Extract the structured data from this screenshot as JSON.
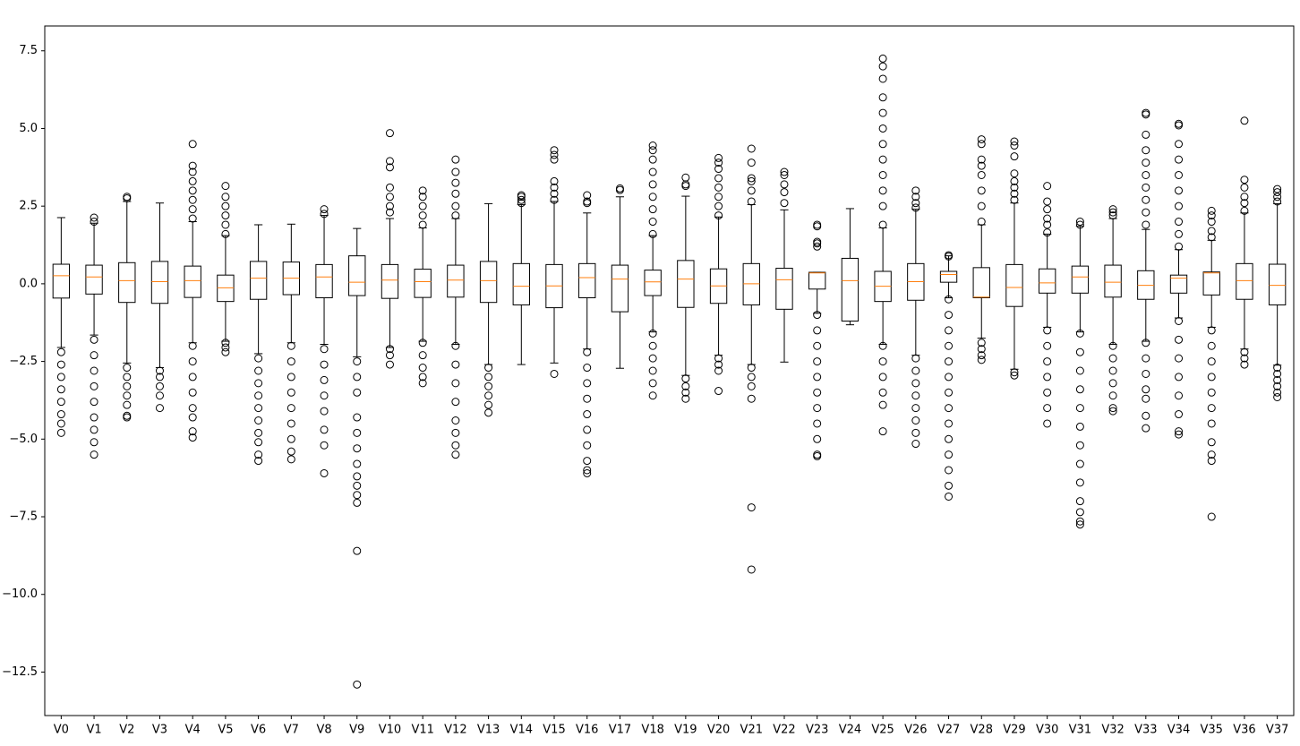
{
  "chart_data": {
    "type": "box",
    "categories": [
      "V0",
      "V1",
      "V2",
      "V3",
      "V4",
      "V5",
      "V6",
      "V7",
      "V8",
      "V9",
      "V10",
      "V11",
      "V12",
      "V13",
      "V14",
      "V15",
      "V16",
      "V17",
      "V18",
      "V19",
      "V20",
      "V21",
      "V22",
      "V23",
      "V24",
      "V25",
      "V26",
      "V27",
      "V28",
      "V29",
      "V30",
      "V31",
      "V32",
      "V33",
      "V34",
      "V35",
      "V36",
      "V37"
    ],
    "box_color": "#000000",
    "median_color": "#ff7f0e",
    "ylim": [
      -13.9,
      8.3
    ],
    "yticks": [
      {
        "value": -12.5,
        "label": "−12.5"
      },
      {
        "value": -10,
        "label": "−10.0"
      },
      {
        "value": -7.5,
        "label": "−7.5"
      },
      {
        "value": -5,
        "label": "−5.0"
      },
      {
        "value": -2.5,
        "label": "−2.5"
      },
      {
        "value": 0,
        "label": "0.0"
      },
      2.5,
      {
        "value": 5,
        "label": "5.0"
      },
      7.5
    ],
    "boxes": [
      {
        "whislo": -2.05,
        "q1": -0.46,
        "med": 0.26,
        "q3": 0.63,
        "whishi": 2.13,
        "fliers": [
          -2.2,
          -2.6,
          -3.0,
          -3.4,
          -3.8,
          -4.2,
          -4.5,
          -4.8
        ]
      },
      {
        "whislo": -1.65,
        "q1": -0.33,
        "med": 0.22,
        "q3": 0.6,
        "whishi": 1.95,
        "fliers": [
          2.0,
          2.13,
          -1.8,
          -2.3,
          -2.8,
          -3.3,
          -3.8,
          -4.3,
          -4.7,
          -5.1,
          -5.5
        ]
      },
      {
        "whislo": -2.55,
        "q1": -0.6,
        "med": 0.1,
        "q3": 0.68,
        "whishi": 2.65,
        "fliers": [
          2.75,
          2.8,
          -2.7,
          -3.0,
          -3.3,
          -3.6,
          -3.9,
          -4.25,
          -4.3
        ]
      },
      {
        "whislo": -2.7,
        "q1": -0.63,
        "med": 0.07,
        "q3": 0.72,
        "whishi": 2.6,
        "fliers": [
          -2.8,
          -3.0,
          -3.3,
          -3.6,
          -4.0
        ]
      },
      {
        "whislo": -1.9,
        "q1": -0.44,
        "med": 0.1,
        "q3": 0.57,
        "whishi": 2.0,
        "fliers": [
          2.1,
          2.4,
          2.7,
          3.0,
          3.3,
          3.6,
          3.8,
          4.5,
          -2.0,
          -2.5,
          -3.0,
          -3.5,
          -4.0,
          -4.3,
          -4.75,
          -4.95
        ]
      },
      {
        "whislo": -1.85,
        "q1": -0.57,
        "med": -0.13,
        "q3": 0.28,
        "whishi": 1.55,
        "fliers": [
          1.6,
          1.9,
          2.2,
          2.5,
          2.8,
          3.15,
          -1.9,
          -2.05,
          -2.2
        ]
      },
      {
        "whislo": -2.25,
        "q1": -0.5,
        "med": 0.18,
        "q3": 0.72,
        "whishi": 1.9,
        "fliers": [
          -2.4,
          -2.8,
          -3.2,
          -3.6,
          -4.0,
          -4.4,
          -4.8,
          -5.1,
          -5.5,
          -5.7
        ]
      },
      {
        "whislo": -1.9,
        "q1": -0.35,
        "med": 0.18,
        "q3": 0.7,
        "whishi": 1.92,
        "fliers": [
          -2.0,
          -2.5,
          -3.0,
          -3.5,
          -4.0,
          -4.5,
          -5.0,
          -5.4,
          -5.65
        ]
      },
      {
        "whislo": -1.95,
        "q1": -0.45,
        "med": 0.22,
        "q3": 0.62,
        "whishi": 2.2,
        "fliers": [
          2.25,
          2.4,
          -2.1,
          -2.6,
          -3.1,
          -3.6,
          -4.1,
          -4.7,
          -5.2,
          -6.1
        ]
      },
      {
        "whislo": -2.35,
        "q1": -0.38,
        "med": 0.05,
        "q3": 0.9,
        "whishi": 1.78,
        "fliers": [
          -2.5,
          -3.0,
          -3.5,
          -4.3,
          -4.8,
          -5.3,
          -5.8,
          -6.2,
          -6.5,
          -6.8,
          -7.05,
          -8.6,
          -12.9
        ]
      },
      {
        "whislo": -2.05,
        "q1": -0.47,
        "med": 0.12,
        "q3": 0.62,
        "whishi": 2.1,
        "fliers": [
          2.3,
          2.5,
          2.8,
          3.1,
          3.75,
          3.95,
          4.85,
          -2.1,
          -2.3,
          -2.6
        ]
      },
      {
        "whislo": -1.85,
        "q1": -0.44,
        "med": 0.07,
        "q3": 0.47,
        "whishi": 1.8,
        "fliers": [
          1.9,
          2.2,
          2.5,
          2.8,
          3.0,
          -1.9,
          -2.3,
          -2.7,
          -3.0,
          -3.2
        ]
      },
      {
        "whislo": -1.95,
        "q1": -0.43,
        "med": 0.12,
        "q3": 0.6,
        "whishi": 2.1,
        "fliers": [
          2.2,
          2.5,
          2.9,
          3.25,
          3.6,
          4.0,
          -2.0,
          -2.6,
          -3.2,
          -3.8,
          -4.4,
          -4.8,
          -5.2,
          -5.5
        ]
      },
      {
        "whislo": -2.6,
        "q1": -0.6,
        "med": 0.1,
        "q3": 0.72,
        "whishi": 2.58,
        "fliers": [
          -2.7,
          -3.0,
          -3.3,
          -3.6,
          -3.9,
          -4.15
        ]
      },
      {
        "whislo": -2.6,
        "q1": -0.68,
        "med": -0.08,
        "q3": 0.65,
        "whishi": 2.55,
        "fliers": [
          2.6,
          2.7,
          2.8,
          2.85
        ]
      },
      {
        "whislo": -2.55,
        "q1": -0.77,
        "med": -0.07,
        "q3": 0.62,
        "whishi": 2.65,
        "fliers": [
          2.7,
          2.9,
          3.1,
          3.3,
          4.0,
          4.15,
          4.3,
          -2.9
        ]
      },
      {
        "whislo": -2.1,
        "q1": -0.45,
        "med": 0.2,
        "q3": 0.65,
        "whishi": 2.28,
        "fliers": [
          2.6,
          2.65,
          2.85,
          -2.2,
          -2.7,
          -3.2,
          -3.7,
          -4.2,
          -4.7,
          -5.2,
          -5.7,
          -6.0,
          -6.1
        ]
      },
      {
        "whislo": -2.72,
        "q1": -0.9,
        "med": 0.15,
        "q3": 0.6,
        "whishi": 2.8,
        "fliers": [
          3.02,
          3.07
        ]
      },
      {
        "whislo": -1.55,
        "q1": -0.38,
        "med": 0.06,
        "q3": 0.44,
        "whishi": 1.55,
        "fliers": [
          1.6,
          2.0,
          2.4,
          2.8,
          3.2,
          3.6,
          4.0,
          4.3,
          4.45,
          -1.6,
          -2.0,
          -2.4,
          -2.8,
          -3.2,
          -3.6
        ]
      },
      {
        "whislo": -2.95,
        "q1": -0.76,
        "med": 0.15,
        "q3": 0.75,
        "whishi": 2.82,
        "fliers": [
          3.15,
          3.2,
          3.42,
          -3.05,
          -3.3,
          -3.5,
          -3.7
        ]
      },
      {
        "whislo": -2.3,
        "q1": -0.63,
        "med": -0.07,
        "q3": 0.48,
        "whishi": 2.15,
        "fliers": [
          2.2,
          2.5,
          2.8,
          3.1,
          3.4,
          3.7,
          3.9,
          4.05,
          -2.4,
          -2.6,
          -2.8,
          -3.45
        ]
      },
      {
        "whislo": -2.6,
        "q1": -0.68,
        "med": 0.0,
        "q3": 0.65,
        "whishi": 2.55,
        "fliers": [
          2.65,
          3.0,
          3.3,
          3.4,
          3.9,
          4.35,
          -2.7,
          -3.0,
          -3.3,
          -3.7,
          -7.2,
          -9.2
        ]
      },
      {
        "whislo": -2.52,
        "q1": -0.82,
        "med": 0.13,
        "q3": 0.5,
        "whishi": 2.38,
        "fliers": [
          2.6,
          2.95,
          3.2,
          3.5,
          3.6
        ]
      },
      {
        "whislo": -0.95,
        "q1": -0.17,
        "med": 0.35,
        "q3": 0.37,
        "whishi": 0.37,
        "fliers": [
          1.2,
          1.3,
          1.35,
          1.85,
          1.9,
          -1.0,
          -1.5,
          -2.0,
          -2.5,
          -3.0,
          -3.5,
          -4.0,
          -4.5,
          -5.0,
          -5.5,
          -5.55
        ]
      },
      {
        "whislo": -1.32,
        "q1": -1.2,
        "med": 0.1,
        "q3": 0.82,
        "whishi": 2.42,
        "fliers": []
      },
      {
        "whislo": -1.95,
        "q1": -0.57,
        "med": -0.08,
        "q3": 0.4,
        "whishi": 1.8,
        "fliers": [
          1.9,
          2.5,
          3.0,
          3.5,
          4.0,
          4.5,
          5.0,
          5.5,
          6.0,
          6.6,
          7.0,
          7.25,
          -2.0,
          -2.5,
          -3.0,
          -3.5,
          -3.9,
          -4.75
        ]
      },
      {
        "whislo": -2.3,
        "q1": -0.53,
        "med": 0.07,
        "q3": 0.65,
        "whishi": 2.4,
        "fliers": [
          2.45,
          2.6,
          2.8,
          3.0,
          -2.4,
          -2.8,
          -3.2,
          -3.6,
          -4.0,
          -4.4,
          -4.8,
          -5.15
        ]
      },
      {
        "whislo": -0.45,
        "q1": 0.05,
        "med": 0.3,
        "q3": 0.4,
        "whishi": 0.9,
        "fliers": [
          0.88,
          0.92,
          -0.5,
          -1.0,
          -1.5,
          -2.0,
          -2.5,
          -3.0,
          -3.5,
          -4.0,
          -4.5,
          -5.0,
          -5.5,
          -6.0,
          -6.5,
          -6.85
        ]
      },
      {
        "whislo": -1.75,
        "q1": -0.45,
        "med": -0.43,
        "q3": 0.52,
        "whishi": 1.9,
        "fliers": [
          2.0,
          2.5,
          3.0,
          3.5,
          3.8,
          4.0,
          4.5,
          4.65,
          -1.9,
          -2.1,
          -2.3,
          -2.45
        ]
      },
      {
        "whislo": -2.75,
        "q1": -0.73,
        "med": -0.12,
        "q3": 0.62,
        "whishi": 2.6,
        "fliers": [
          2.7,
          2.9,
          3.1,
          3.3,
          3.55,
          4.1,
          4.45,
          4.58,
          -2.85,
          -2.95
        ]
      },
      {
        "whislo": -1.4,
        "q1": -0.3,
        "med": 0.03,
        "q3": 0.48,
        "whishi": 1.6,
        "fliers": [
          1.65,
          1.9,
          2.1,
          2.4,
          2.65,
          3.15,
          -1.5,
          -2.0,
          -2.5,
          -3.0,
          -3.5,
          -4.0,
          -4.5
        ]
      },
      {
        "whislo": -1.55,
        "q1": -0.3,
        "med": 0.22,
        "q3": 0.57,
        "whishi": 1.85,
        "fliers": [
          1.9,
          2.0,
          -1.6,
          -2.2,
          -2.8,
          -3.4,
          -4.0,
          -4.6,
          -5.2,
          -5.8,
          -6.4,
          -7.0,
          -7.35,
          -7.65,
          -7.75
        ]
      },
      {
        "whislo": -1.95,
        "q1": -0.43,
        "med": 0.05,
        "q3": 0.6,
        "whishi": 2.1,
        "fliers": [
          2.2,
          2.3,
          2.4,
          -2.0,
          -2.4,
          -2.8,
          -3.2,
          -3.6,
          -4.0,
          -4.1
        ]
      },
      {
        "whislo": -1.85,
        "q1": -0.5,
        "med": -0.05,
        "q3": 0.42,
        "whishi": 1.75,
        "fliers": [
          1.9,
          2.3,
          2.7,
          3.1,
          3.5,
          3.9,
          4.3,
          4.8,
          5.45,
          5.5,
          -1.9,
          -2.4,
          -2.9,
          -3.4,
          -3.7,
          -4.25,
          -4.65
        ]
      },
      {
        "whislo": -1.1,
        "q1": -0.3,
        "med": 0.18,
        "q3": 0.28,
        "whishi": 1.1,
        "fliers": [
          1.2,
          1.6,
          2.0,
          2.5,
          3.0,
          3.5,
          4.0,
          4.5,
          5.1,
          5.15,
          -1.2,
          -1.8,
          -2.4,
          -3.0,
          -3.6,
          -4.2,
          -4.75,
          -4.85
        ]
      },
      {
        "whislo": -1.4,
        "q1": -0.36,
        "med": 0.35,
        "q3": 0.38,
        "whishi": 1.4,
        "fliers": [
          1.5,
          1.7,
          2.0,
          2.2,
          2.35,
          -1.5,
          -2.0,
          -2.5,
          -3.0,
          -3.5,
          -4.0,
          -4.5,
          -5.1,
          -5.5,
          -5.7,
          -7.5
        ]
      },
      {
        "whislo": -2.1,
        "q1": -0.5,
        "med": 0.1,
        "q3": 0.65,
        "whishi": 2.28,
        "fliers": [
          2.35,
          2.6,
          2.8,
          3.1,
          3.35,
          5.25,
          -2.2,
          -2.4,
          -2.6
        ]
      },
      {
        "whislo": -2.62,
        "q1": -0.68,
        "med": -0.05,
        "q3": 0.63,
        "whishi": 2.58,
        "fliers": [
          2.65,
          2.8,
          2.95,
          3.05,
          -2.7,
          -2.9,
          -3.1,
          -3.3,
          -3.5,
          -3.65
        ]
      }
    ]
  }
}
